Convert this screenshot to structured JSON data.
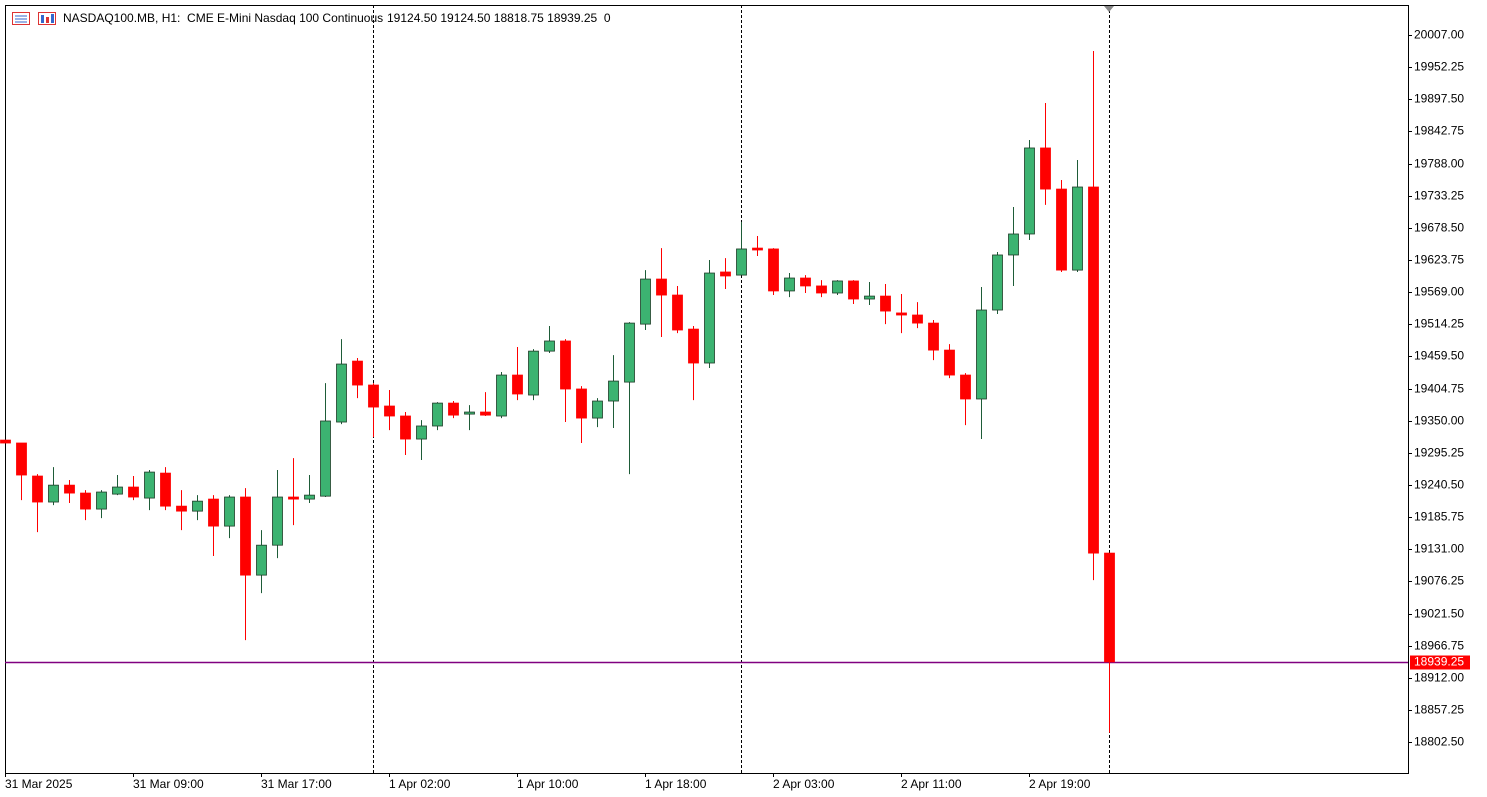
{
  "chart_data": {
    "type": "candlestick",
    "title": "NASDAQ100.MB, H1:  CME E-Mini Nasdaq 100 Continuous",
    "info": "19124.50 19124.50 18818.75 18939.25  0",
    "categories": [
      "31 Mar 2025",
      null,
      null,
      null,
      null,
      null,
      null,
      null,
      "31 Mar 09:00",
      null,
      null,
      null,
      null,
      null,
      null,
      null,
      "31 Mar 17:00",
      null,
      null,
      null,
      null,
      null,
      null,
      null,
      "1 Apr 02:00",
      null,
      null,
      null,
      null,
      null,
      null,
      null,
      "1 Apr 10:00",
      null,
      null,
      null,
      null,
      null,
      null,
      null,
      "1 Apr 18:00",
      null,
      null,
      null,
      null,
      null,
      null,
      null,
      "2 Apr 03:00",
      null,
      null,
      null,
      null,
      null,
      null,
      null,
      "2 Apr 11:00",
      null,
      null,
      null,
      null,
      null,
      null,
      null,
      "2 Apr 19:00",
      null,
      null,
      null,
      null,
      null
    ],
    "open": [
      19317,
      19312,
      19255.75,
      19211.5,
      19240.25,
      19226.75,
      19199.5,
      19225,
      19237,
      19218.25,
      19260.75,
      19204.5,
      19196,
      19216.5,
      19170.5,
      19220,
      19087,
      19138,
      19220,
      19216.5,
      19221.5,
      19347.75,
      19451.5,
      19410.75,
      19375,
      19358,
      19318.75,
      19341,
      19380,
      19361.25,
      19364.75,
      19358,
      19427.75,
      19393.75,
      19468.5,
      19485.75,
      19404,
      19354.5,
      19383.5,
      19415.75,
      19514.5,
      19591.25,
      19564,
      19506,
      19448.25,
      19603.25,
      19598,
      19644,
      19642.5,
      19571,
      19593,
      19579.5,
      19567.5,
      19588,
      19557.25,
      19562.25,
      19533.5,
      19530,
      19516.25,
      19470.25,
      19427.75,
      19387,
      19538.5,
      19632.25,
      19668,
      19814.5,
      19744.5,
      19606.5,
      19748,
      19124.5
    ],
    "high": [
      19317,
      19312,
      19259,
      19271,
      19249,
      19231.75,
      19231.75,
      19257.5,
      19255.75,
      19266,
      19271,
      19231.75,
      19223.25,
      19223.25,
      19223.25,
      19235.25,
      19163.75,
      19266,
      19286.25,
      19257.5,
      19414,
      19489,
      19456.75,
      19414,
      19402.25,
      19364.75,
      19351,
      19381.75,
      19383.5,
      19376.5,
      19398.75,
      19433,
      19475.5,
      19472,
      19511.25,
      19489,
      19409,
      19388.5,
      19461.75,
      19518,
      19606.5,
      19644,
      19579.5,
      19511.25,
      19623.75,
      19627,
      19688.5,
      19664.5,
      19644,
      19601.5,
      19598,
      19589.5,
      19589.5,
      19589.5,
      19586.25,
      19582.75,
      19565.75,
      19552,
      19521.5,
      19480.5,
      19431,
      19577.75,
      19637.25,
      19714,
      19828,
      19891,
      19760,
      19794,
      19979.75,
      19124.5
    ],
    "low": [
      19312,
      19214.75,
      19160.25,
      19206.25,
      19209.75,
      19180.75,
      19184,
      19223.25,
      19214.75,
      19197.75,
      19197.75,
      19163.75,
      19180.75,
      19119.5,
      19150,
      18976.25,
      19056.25,
      19116,
      19172.25,
      19209.75,
      19220,
      19344.25,
      19388.5,
      19322,
      19334,
      19291.5,
      19283,
      19334,
      19354.5,
      19334,
      19358,
      19354.5,
      19385,
      19385,
      19465.25,
      19347.75,
      19312,
      19339,
      19337.5,
      19259,
      19504.5,
      19492.5,
      19499.25,
      19385,
      19439.75,
      19574.25,
      19598,
      19630.5,
      19564,
      19560.5,
      19567.5,
      19560.5,
      19564,
      19548.75,
      19547,
      19514.5,
      19499.25,
      19507.75,
      19453.25,
      19422.5,
      19342.5,
      19318.75,
      19531.75,
      19579.5,
      19657.75,
      19717.5,
      19603.25,
      19603.25,
      19078.5,
      18818.75
    ],
    "close": [
      19312,
      19257.5,
      19211.5,
      19240.25,
      19226.75,
      19199.5,
      19228.5,
      19237,
      19220,
      19262.5,
      19204.5,
      19196,
      19213,
      19170.5,
      19220,
      19087,
      19138,
      19220,
      19216.5,
      19223.25,
      19349.5,
      19446.5,
      19410.75,
      19373.25,
      19358,
      19318.75,
      19341,
      19380,
      19359.5,
      19364.75,
      19359.5,
      19427.75,
      19395.5,
      19468.5,
      19485.75,
      19404,
      19354.5,
      19383.5,
      19417.5,
      19516.25,
      19591.25,
      19564,
      19504.5,
      19448.25,
      19601.5,
      19596.5,
      19642.5,
      19640.75,
      19571,
      19593,
      19579.5,
      19567.5,
      19588,
      19557.25,
      19562.25,
      19536.75,
      19530,
      19516.25,
      19470.25,
      19427.75,
      19387,
      19538.5,
      19632.25,
      19668,
      19814.5,
      19744.5,
      19606.5,
      19748,
      19124.5,
      18939.25
    ],
    "up_color": "#3cb371",
    "down_color": "#ff0000",
    "current_price": {
      "value": 18939.25,
      "label": "18939.25"
    },
    "current_line_color": "#800080",
    "ylim": [
      18750,
      20058
    ],
    "yticks": [
      {
        "value": 20007,
        "label": "20007.00"
      },
      {
        "value": 19952.25,
        "label": "19952.25"
      },
      {
        "value": 19897.5,
        "label": "19897.50"
      },
      {
        "value": 19842.75,
        "label": "19842.75"
      },
      {
        "value": 19788,
        "label": "19788.00"
      },
      {
        "value": 19733.25,
        "label": "19733.25"
      },
      {
        "value": 19678.5,
        "label": "19678.50"
      },
      {
        "value": 19623.75,
        "label": "19623.75"
      },
      {
        "value": 19569,
        "label": "19569.00"
      },
      {
        "value": 19514.25,
        "label": "19514.25"
      },
      {
        "value": 19459.5,
        "label": "19459.50"
      },
      {
        "value": 19404.75,
        "label": "19404.75"
      },
      {
        "value": 19350,
        "label": "19350.00"
      },
      {
        "value": 19295.25,
        "label": "19295.25"
      },
      {
        "value": 19240.5,
        "label": "19240.50"
      },
      {
        "value": 19185.75,
        "label": "19185.75"
      },
      {
        "value": 19131,
        "label": "19131.00"
      },
      {
        "value": 19076.25,
        "label": "19076.25"
      },
      {
        "value": 19021.5,
        "label": "19021.50"
      },
      {
        "value": 18966.75,
        "label": "18966.75"
      },
      {
        "value": 18912,
        "label": "18912.00"
      },
      {
        "value": 18857.25,
        "label": "18857.25"
      },
      {
        "value": 18802.5,
        "label": "18802.50"
      }
    ],
    "grid": false
  }
}
